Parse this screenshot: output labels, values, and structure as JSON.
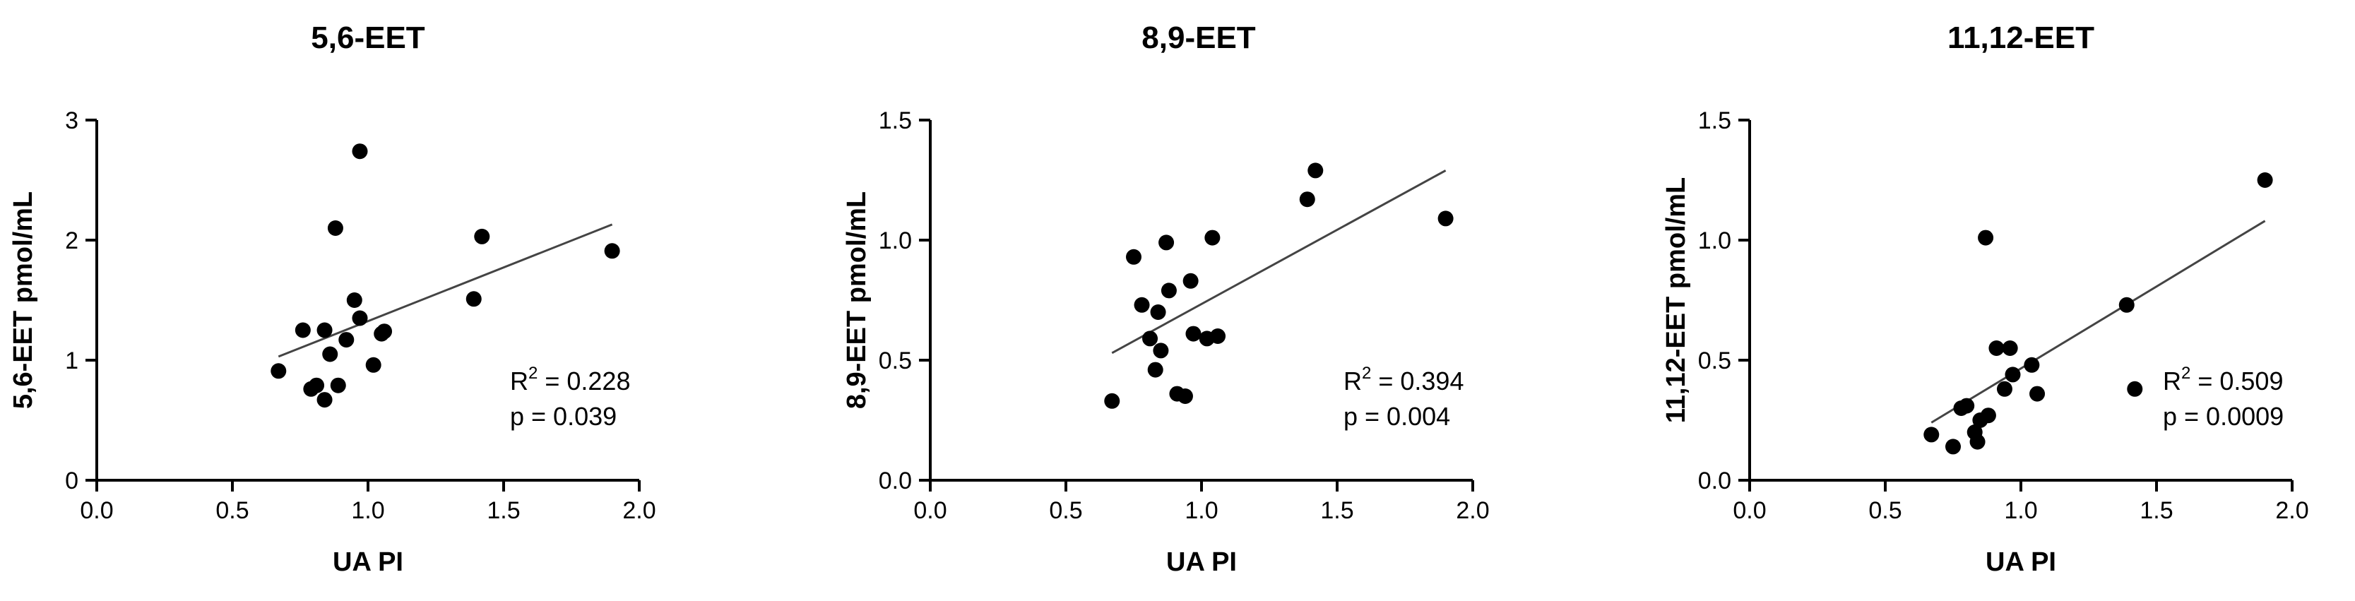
{
  "chart_data": [
    {
      "type": "scatter",
      "title": "5,6-EET",
      "xlabel": "UA PI",
      "ylabel": "5,6-EET pmol/mL",
      "xlim": [
        0,
        2
      ],
      "ylim": [
        0,
        3
      ],
      "xticks": [
        0,
        0.5,
        1,
        1.5,
        2
      ],
      "xtick_labels": [
        "0.0",
        "0.5",
        "1.0",
        "1.5",
        "2.0"
      ],
      "yticks": [
        0,
        1,
        2,
        3
      ],
      "ytick_labels": [
        "0",
        "1",
        "2",
        "3"
      ],
      "points": [
        [
          0.67,
          0.91
        ],
        [
          0.76,
          1.25
        ],
        [
          0.79,
          0.76
        ],
        [
          0.81,
          0.79
        ],
        [
          0.84,
          0.67
        ],
        [
          0.84,
          1.25
        ],
        [
          0.86,
          1.05
        ],
        [
          0.88,
          2.1
        ],
        [
          0.89,
          0.79
        ],
        [
          0.92,
          1.17
        ],
        [
          0.95,
          1.5
        ],
        [
          0.97,
          1.35
        ],
        [
          0.97,
          2.74
        ],
        [
          1.02,
          0.96
        ],
        [
          1.05,
          1.22
        ],
        [
          1.06,
          1.24
        ],
        [
          1.39,
          1.51
        ],
        [
          1.42,
          2.03
        ],
        [
          1.9,
          1.91
        ]
      ],
      "fit_line": {
        "x": [
          0.67,
          1.9
        ],
        "y": [
          1.03,
          2.13
        ]
      },
      "r2_label": "R",
      "r2_sup": "2",
      "r2_value": " = 0.228",
      "p_text": "p = 0.039"
    },
    {
      "type": "scatter",
      "title": "8,9-EET",
      "xlabel": "UA PI",
      "ylabel": "8,9-EET pmol/mL",
      "xlim": [
        0,
        2
      ],
      "ylim": [
        0,
        1.5
      ],
      "xticks": [
        0,
        0.5,
        1,
        1.5,
        2
      ],
      "xtick_labels": [
        "0.0",
        "0.5",
        "1.0",
        "1.5",
        "2.0"
      ],
      "yticks": [
        0,
        0.5,
        1,
        1.5
      ],
      "ytick_labels": [
        "0.0",
        "0.5",
        "1.0",
        "1.5"
      ],
      "points": [
        [
          0.67,
          0.33
        ],
        [
          0.75,
          0.93
        ],
        [
          0.78,
          0.73
        ],
        [
          0.81,
          0.59
        ],
        [
          0.83,
          0.46
        ],
        [
          0.84,
          0.7
        ],
        [
          0.85,
          0.54
        ],
        [
          0.87,
          0.99
        ],
        [
          0.88,
          0.79
        ],
        [
          0.91,
          0.36
        ],
        [
          0.94,
          0.35
        ],
        [
          0.96,
          0.83
        ],
        [
          0.97,
          0.61
        ],
        [
          1.02,
          0.59
        ],
        [
          1.04,
          1.01
        ],
        [
          1.06,
          0.6
        ],
        [
          1.39,
          1.17
        ],
        [
          1.42,
          1.29
        ],
        [
          1.9,
          1.09
        ]
      ],
      "fit_line": {
        "x": [
          0.67,
          1.9
        ],
        "y": [
          0.53,
          1.29
        ]
      },
      "r2_label": "R",
      "r2_sup": "2",
      "r2_value": " = 0.394",
      "p_text": "p = 0.004"
    },
    {
      "type": "scatter",
      "title": "11,12-EET",
      "xlabel": "UA PI",
      "ylabel": "11,12-EET pmol/mL",
      "xlim": [
        0,
        2
      ],
      "ylim": [
        0,
        1.5
      ],
      "xticks": [
        0,
        0.5,
        1,
        1.5,
        2
      ],
      "xtick_labels": [
        "0.0",
        "0.5",
        "1.0",
        "1.5",
        "2.0"
      ],
      "yticks": [
        0,
        0.5,
        1,
        1.5
      ],
      "ytick_labels": [
        "0.0",
        "0.5",
        "1.0",
        "1.5"
      ],
      "points": [
        [
          0.67,
          0.19
        ],
        [
          0.75,
          0.14
        ],
        [
          0.78,
          0.3
        ],
        [
          0.8,
          0.31
        ],
        [
          0.83,
          0.2
        ],
        [
          0.84,
          0.16
        ],
        [
          0.85,
          0.25
        ],
        [
          0.87,
          1.01
        ],
        [
          0.88,
          0.27
        ],
        [
          0.91,
          0.55
        ],
        [
          0.94,
          0.38
        ],
        [
          0.96,
          0.55
        ],
        [
          0.97,
          0.44
        ],
        [
          1.04,
          0.48
        ],
        [
          1.06,
          0.36
        ],
        [
          1.39,
          0.73
        ],
        [
          1.42,
          0.38
        ],
        [
          1.9,
          1.25
        ]
      ],
      "fit_line": {
        "x": [
          0.67,
          1.9
        ],
        "y": [
          0.24,
          1.08
        ]
      },
      "r2_label": "R",
      "r2_sup": "2",
      "r2_value": " = 0.509",
      "p_text": "p = 0.0009"
    }
  ]
}
